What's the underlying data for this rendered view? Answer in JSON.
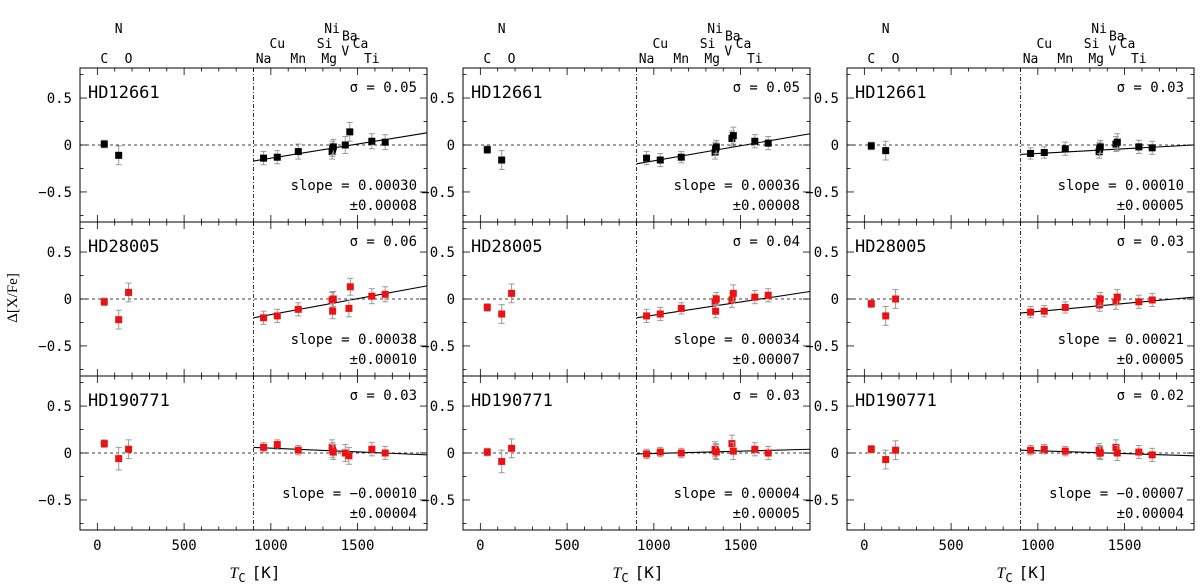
{
  "chart_data": {
    "type": "scatter",
    "ylabel": "Δ[X/Fe]",
    "xlabel_symbol": "T",
    "xlabel_sub": "C",
    "xlabel_unit": "[K]",
    "xlim": [
      -100,
      1900
    ],
    "ylim": [
      -0.82,
      0.82
    ],
    "xticks": [
      0,
      500,
      1000,
      1500
    ],
    "yticks": [
      -0.5,
      0,
      0.5
    ],
    "ytick_labels": [
      "−0.5",
      "0",
      "0.5"
    ],
    "vline_x": 900,
    "element_labels": [
      {
        "label": "N",
        "tc": 123,
        "row": 1
      },
      {
        "label": "C",
        "tc": 40,
        "row": 3
      },
      {
        "label": "O",
        "tc": 180,
        "row": 3
      },
      {
        "label": "Cu",
        "tc": 1037,
        "row": 2
      },
      {
        "label": "Na",
        "tc": 958,
        "row": 3
      },
      {
        "label": "Mn",
        "tc": 1158,
        "row": 3
      },
      {
        "label": "Ni",
        "tc": 1353,
        "row": 1
      },
      {
        "label": "Si",
        "tc": 1310,
        "row": 2
      },
      {
        "label": "Mg",
        "tc": 1336,
        "row": 3
      },
      {
        "label": "Ba",
        "tc": 1455,
        "row": 1.5
      },
      {
        "label": "V",
        "tc": 1429,
        "row": 2.5
      },
      {
        "label": "Ca",
        "tc": 1517,
        "row": 2
      },
      {
        "label": "Ti",
        "tc": 1582,
        "row": 3
      }
    ],
    "panels": [
      {
        "column": 1,
        "row": 1,
        "star": "HD12661",
        "color": "#000000",
        "sigma": "σ = 0.05",
        "slope": "slope = 0.00030",
        "err": "±0.00008",
        "fit": [
          -0.17,
          0.13
        ],
        "points": [
          [
            40,
            0.01,
            0.04
          ],
          [
            123,
            -0.11,
            0.1
          ],
          [
            958,
            -0.14,
            0.07
          ],
          [
            1037,
            -0.13,
            0.07
          ],
          [
            1158,
            -0.07,
            0.08
          ],
          [
            1353,
            -0.07,
            0.08
          ],
          [
            1356,
            -0.04,
            0.08
          ],
          [
            1360,
            -0.02,
            0.08
          ],
          [
            1429,
            0.0,
            0.09
          ],
          [
            1455,
            0.14,
            0.1
          ],
          [
            1582,
            0.04,
            0.08
          ],
          [
            1659,
            0.03,
            0.08
          ]
        ]
      },
      {
        "column": 2,
        "row": 1,
        "star": "HD12661",
        "color": "#000000",
        "sigma": "σ = 0.05",
        "slope": "slope = 0.00036",
        "err": "±0.00008",
        "fit": [
          -0.2,
          0.12
        ],
        "points": [
          [
            40,
            -0.05,
            0.04
          ],
          [
            123,
            -0.16,
            0.1
          ],
          [
            958,
            -0.14,
            0.07
          ],
          [
            1037,
            -0.16,
            0.07
          ],
          [
            1158,
            -0.13,
            0.06
          ],
          [
            1353,
            -0.08,
            0.07
          ],
          [
            1356,
            -0.04,
            0.07
          ],
          [
            1360,
            -0.02,
            0.07
          ],
          [
            1450,
            0.07,
            0.08
          ],
          [
            1458,
            0.1,
            0.09
          ],
          [
            1582,
            0.04,
            0.07
          ],
          [
            1659,
            0.02,
            0.07
          ]
        ]
      },
      {
        "column": 3,
        "row": 1,
        "star": "HD12661",
        "color": "#000000",
        "sigma": "σ = 0.03",
        "slope": "slope = 0.00010",
        "err": "±0.00005",
        "fit": [
          -0.1,
          0.0
        ],
        "points": [
          [
            40,
            -0.01,
            0.04
          ],
          [
            123,
            -0.06,
            0.1
          ],
          [
            958,
            -0.09,
            0.06
          ],
          [
            1037,
            -0.08,
            0.06
          ],
          [
            1158,
            -0.04,
            0.07
          ],
          [
            1353,
            -0.07,
            0.07
          ],
          [
            1356,
            -0.04,
            0.07
          ],
          [
            1360,
            -0.02,
            0.07
          ],
          [
            1450,
            0.01,
            0.08
          ],
          [
            1458,
            0.03,
            0.09
          ],
          [
            1582,
            -0.02,
            0.07
          ],
          [
            1659,
            -0.03,
            0.07
          ]
        ]
      },
      {
        "column": 1,
        "row": 2,
        "star": "HD28005",
        "color": "#ee1111",
        "sigma": "σ = 0.06",
        "slope": "slope = 0.00038",
        "err": "±0.00010",
        "fit": [
          -0.2,
          0.14
        ],
        "points": [
          [
            40,
            -0.03,
            0.04
          ],
          [
            123,
            -0.22,
            0.1
          ],
          [
            180,
            0.07,
            0.1
          ],
          [
            958,
            -0.2,
            0.07
          ],
          [
            1037,
            -0.18,
            0.07
          ],
          [
            1158,
            -0.11,
            0.07
          ],
          [
            1353,
            -0.01,
            0.08
          ],
          [
            1356,
            -0.13,
            0.08
          ],
          [
            1360,
            0.0,
            0.08
          ],
          [
            1450,
            -0.1,
            0.09
          ],
          [
            1458,
            0.13,
            0.09
          ],
          [
            1582,
            0.03,
            0.08
          ],
          [
            1659,
            0.05,
            0.08
          ]
        ]
      },
      {
        "column": 2,
        "row": 2,
        "star": "HD28005",
        "color": "#ee1111",
        "sigma": "σ = 0.04",
        "slope": "slope = 0.00034",
        "err": "±0.00007",
        "fit": [
          -0.2,
          0.08
        ],
        "points": [
          [
            40,
            -0.09,
            0.04
          ],
          [
            123,
            -0.16,
            0.1
          ],
          [
            180,
            0.06,
            0.1
          ],
          [
            958,
            -0.18,
            0.07
          ],
          [
            1037,
            -0.16,
            0.07
          ],
          [
            1158,
            -0.1,
            0.06
          ],
          [
            1353,
            -0.03,
            0.07
          ],
          [
            1356,
            -0.13,
            0.07
          ],
          [
            1360,
            0.0,
            0.07
          ],
          [
            1450,
            -0.01,
            0.08
          ],
          [
            1458,
            0.06,
            0.09
          ],
          [
            1582,
            0.02,
            0.07
          ],
          [
            1659,
            0.04,
            0.07
          ]
        ]
      },
      {
        "column": 3,
        "row": 2,
        "star": "HD28005",
        "color": "#ee1111",
        "sigma": "σ = 0.03",
        "slope": "slope = 0.00021",
        "err": "±0.00005",
        "fit": [
          -0.15,
          0.02
        ],
        "points": [
          [
            40,
            -0.05,
            0.04
          ],
          [
            123,
            -0.18,
            0.1
          ],
          [
            180,
            0.0,
            0.1
          ],
          [
            958,
            -0.14,
            0.06
          ],
          [
            1037,
            -0.13,
            0.06
          ],
          [
            1158,
            -0.09,
            0.06
          ],
          [
            1353,
            -0.03,
            0.07
          ],
          [
            1356,
            -0.06,
            0.07
          ],
          [
            1360,
            0.0,
            0.07
          ],
          [
            1450,
            -0.03,
            0.08
          ],
          [
            1458,
            0.02,
            0.08
          ],
          [
            1582,
            -0.03,
            0.07
          ],
          [
            1659,
            -0.01,
            0.07
          ]
        ]
      },
      {
        "column": 1,
        "row": 3,
        "star": "HD190771",
        "color": "#ee1111",
        "sigma": "σ = 0.03",
        "slope": "slope = −0.00010",
        "err": "±0.00004",
        "fit": [
          0.06,
          -0.02
        ],
        "points": [
          [
            40,
            0.1,
            0.04
          ],
          [
            123,
            -0.06,
            0.12
          ],
          [
            180,
            0.04,
            0.1
          ],
          [
            958,
            0.06,
            0.05
          ],
          [
            1037,
            0.09,
            0.05
          ],
          [
            1158,
            0.03,
            0.05
          ],
          [
            1353,
            0.06,
            0.08
          ],
          [
            1356,
            0.03,
            0.08
          ],
          [
            1360,
            0.01,
            0.08
          ],
          [
            1429,
            0.0,
            0.09
          ],
          [
            1450,
            -0.03,
            0.09
          ],
          [
            1582,
            0.04,
            0.07
          ],
          [
            1659,
            0.0,
            0.07
          ]
        ]
      },
      {
        "column": 2,
        "row": 3,
        "star": "HD190771",
        "color": "#ee1111",
        "sigma": "σ = 0.03",
        "slope": "slope = 0.00004",
        "err": "±0.00005",
        "fit": [
          -0.01,
          0.04
        ],
        "points": [
          [
            40,
            0.01,
            0.04
          ],
          [
            123,
            -0.09,
            0.12
          ],
          [
            180,
            0.05,
            0.1
          ],
          [
            958,
            -0.01,
            0.05
          ],
          [
            1037,
            0.01,
            0.05
          ],
          [
            1158,
            0.0,
            0.05
          ],
          [
            1353,
            0.04,
            0.08
          ],
          [
            1356,
            0.02,
            0.08
          ],
          [
            1360,
            0.01,
            0.08
          ],
          [
            1450,
            0.1,
            0.09
          ],
          [
            1458,
            0.02,
            0.09
          ],
          [
            1582,
            0.04,
            0.07
          ],
          [
            1659,
            0.0,
            0.07
          ]
        ]
      },
      {
        "column": 3,
        "row": 3,
        "star": "HD190771",
        "color": "#ee1111",
        "sigma": "σ = 0.02",
        "slope": "slope = −0.00007",
        "err": "±0.00004",
        "fit": [
          0.03,
          -0.03
        ],
        "points": [
          [
            40,
            0.04,
            0.04
          ],
          [
            123,
            -0.07,
            0.1
          ],
          [
            180,
            0.03,
            0.1
          ],
          [
            958,
            0.03,
            0.05
          ],
          [
            1037,
            0.04,
            0.05
          ],
          [
            1158,
            0.02,
            0.05
          ],
          [
            1353,
            0.03,
            0.07
          ],
          [
            1356,
            0.01,
            0.07
          ],
          [
            1360,
            0.0,
            0.07
          ],
          [
            1450,
            0.06,
            0.08
          ],
          [
            1458,
            0.0,
            0.08
          ],
          [
            1582,
            0.01,
            0.07
          ],
          [
            1659,
            -0.02,
            0.07
          ]
        ]
      }
    ]
  }
}
